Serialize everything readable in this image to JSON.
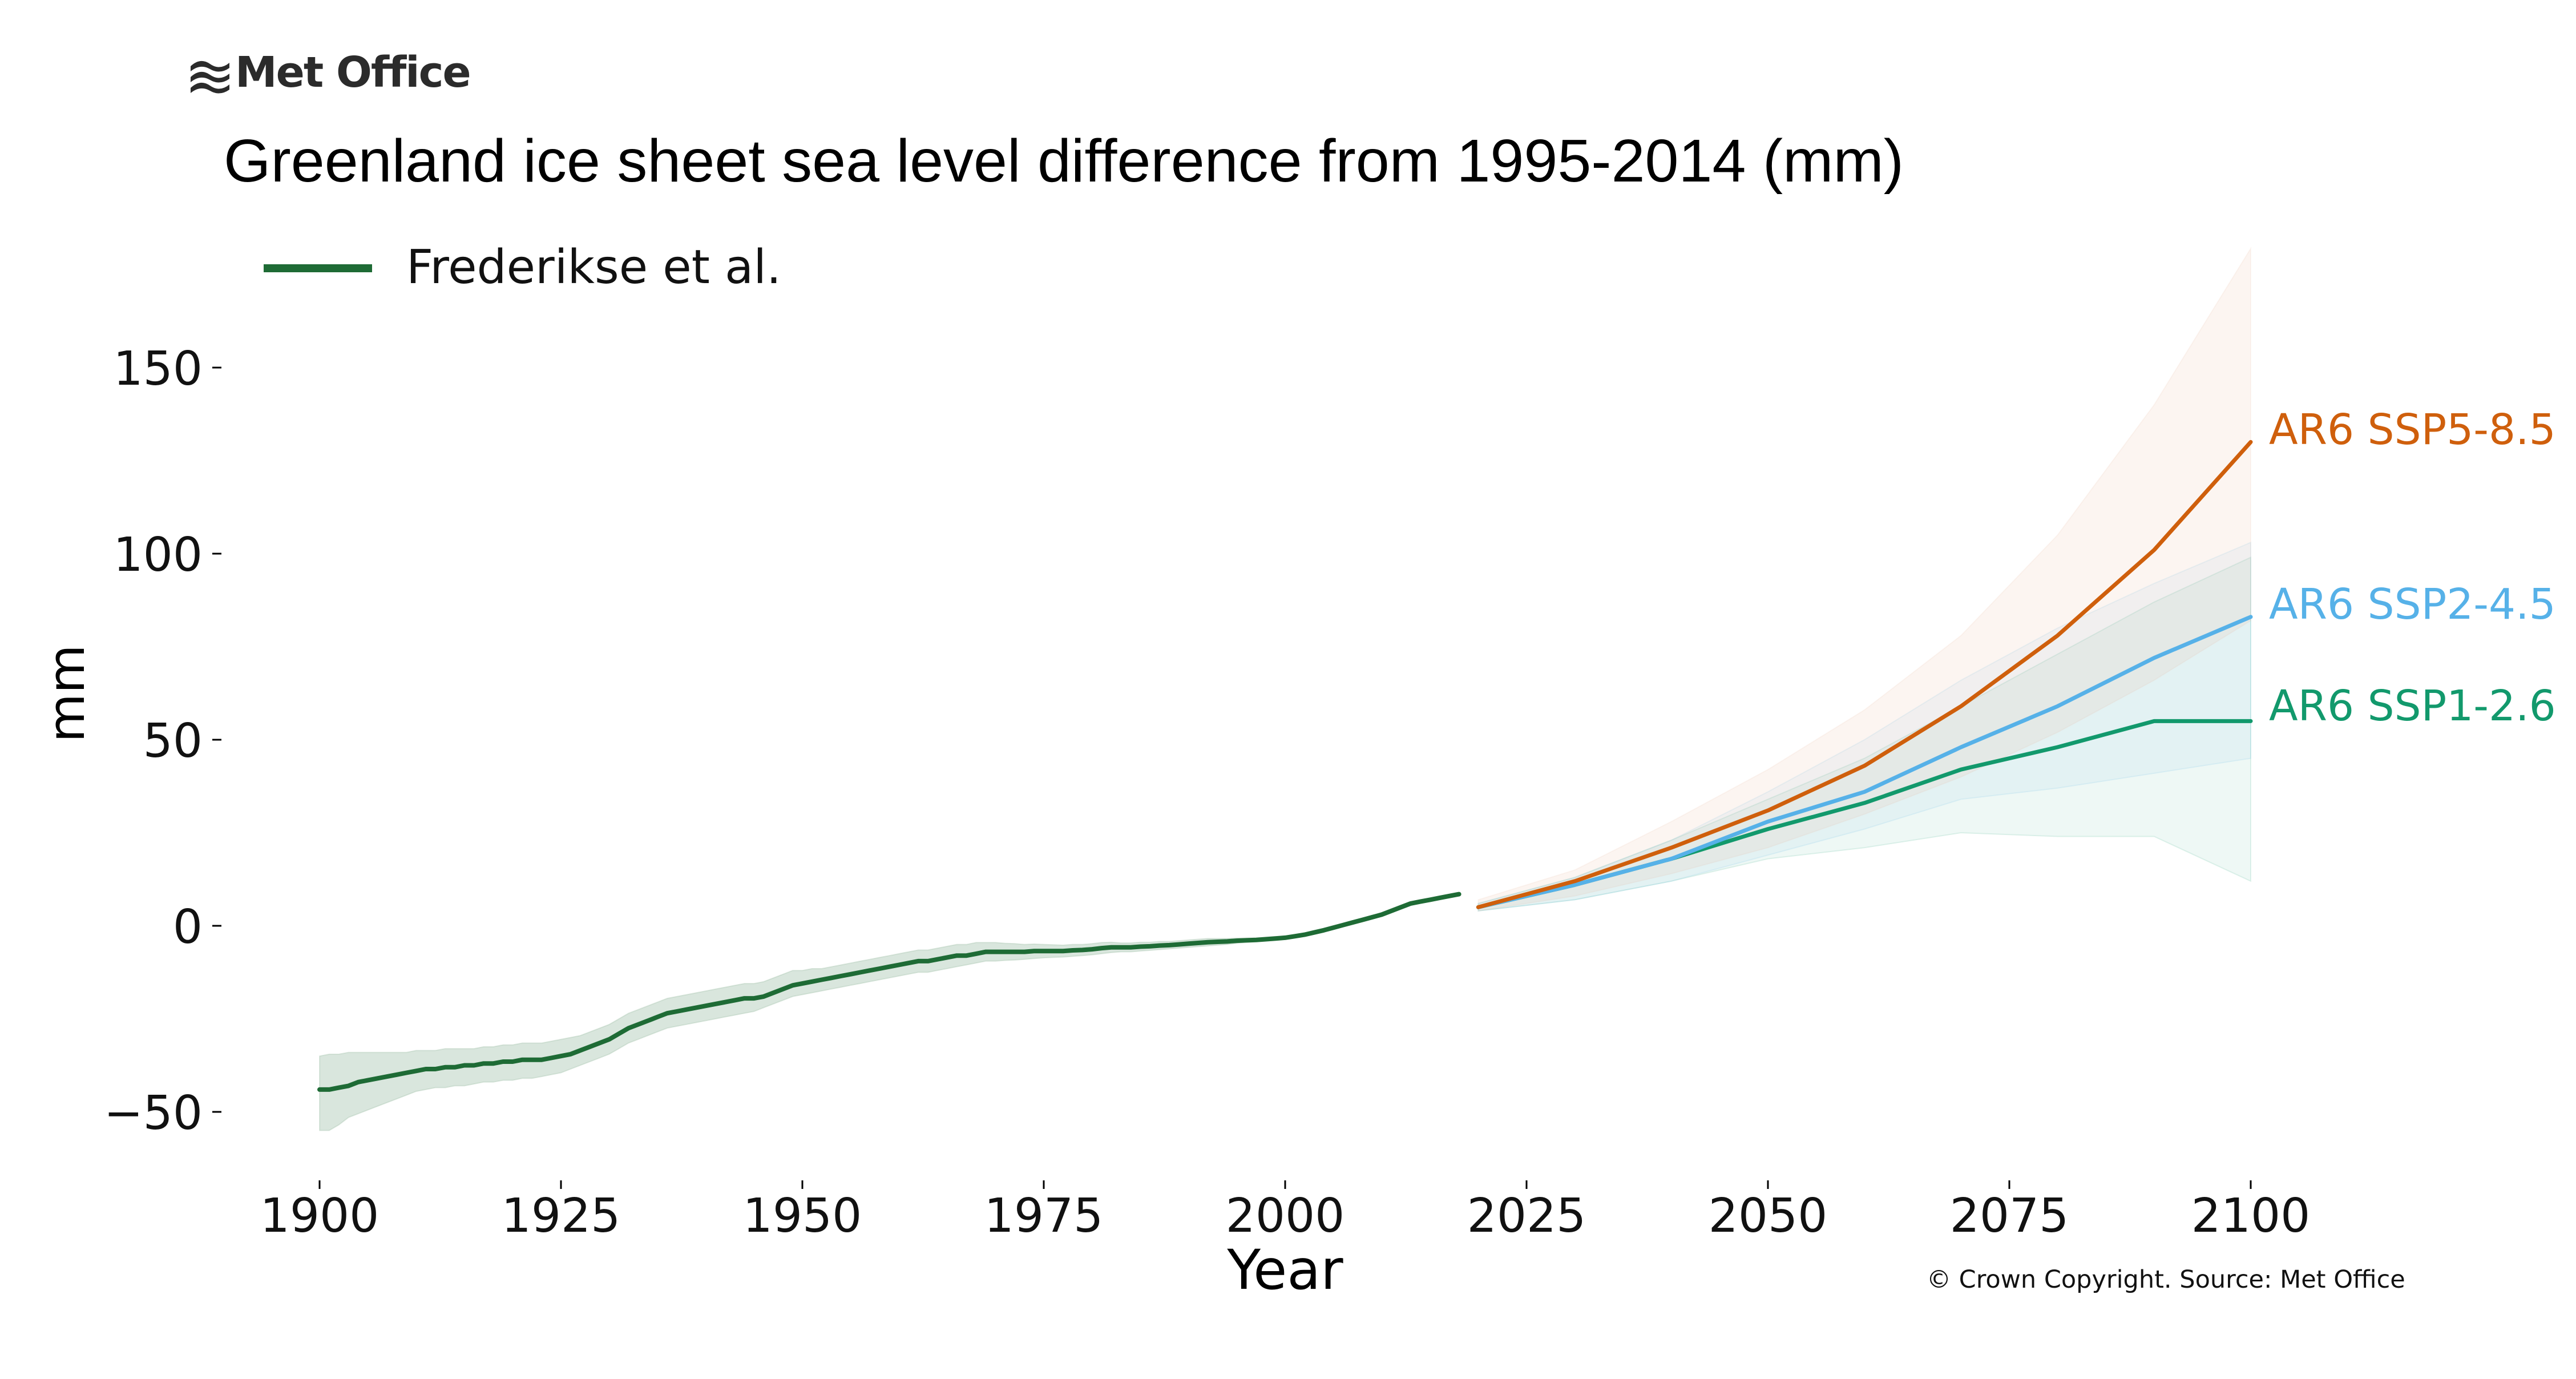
{
  "brand": {
    "name": "Met Office",
    "icon": "met-office-wave-logo-icon"
  },
  "chart_data": {
    "type": "line",
    "title": "Greenland ice sheet sea level difference from 1995-2014 (mm)",
    "xlabel": "Year",
    "ylabel": "mm",
    "xlim": [
      1893,
      2102
    ],
    "ylim": [
      -67,
      183
    ],
    "xticks": [
      1900,
      1925,
      1950,
      1975,
      2000,
      2025,
      2050,
      2075,
      2100
    ],
    "yticks": [
      -50,
      0,
      50,
      100,
      150
    ],
    "ytick_labels": [
      "−50",
      "0",
      "50",
      "100",
      "150"
    ],
    "grid": false,
    "legend": {
      "placement": "top-left",
      "entries": [
        "Frederikse et al."
      ]
    },
    "copyright": "© Crown Copyright. Source: Met Office",
    "series": [
      {
        "name": "Frederikse et al.",
        "color": "#1e6b35",
        "band_color": "#1e6b35",
        "x": [
          1900,
          1901,
          1902,
          1903,
          1904,
          1905,
          1906,
          1907,
          1908,
          1909,
          1910,
          1911,
          1912,
          1913,
          1914,
          1915,
          1916,
          1917,
          1918,
          1919,
          1920,
          1921,
          1922,
          1923,
          1924,
          1925,
          1926,
          1927,
          1928,
          1929,
          1930,
          1931,
          1932,
          1933,
          1934,
          1935,
          1936,
          1937,
          1938,
          1939,
          1940,
          1941,
          1942,
          1943,
          1944,
          1945,
          1946,
          1947,
          1948,
          1949,
          1950,
          1951,
          1952,
          1953,
          1954,
          1955,
          1956,
          1957,
          1958,
          1959,
          1960,
          1961,
          1962,
          1963,
          1964,
          1965,
          1966,
          1967,
          1968,
          1969,
          1970,
          1971,
          1972,
          1973,
          1974,
          1975,
          1976,
          1977,
          1978,
          1979,
          1980,
          1981,
          1982,
          1983,
          1984,
          1985,
          1986,
          1987,
          1988,
          1989,
          1990,
          1991,
          1992,
          1993,
          1994,
          1995,
          1996,
          1997,
          1998,
          1999,
          2000,
          2001,
          2002,
          2003,
          2004,
          2005,
          2006,
          2007,
          2008,
          2009,
          2010,
          2011,
          2012,
          2013,
          2014,
          2015,
          2016,
          2017,
          2018
        ],
        "values": [
          -44,
          -44,
          -43.5,
          -43,
          -42,
          -41.5,
          -41,
          -40.5,
          -40,
          -39.5,
          -39,
          -38.5,
          -38.5,
          -38,
          -38,
          -37.5,
          -37.5,
          -37,
          -37,
          -36.5,
          -36.5,
          -36,
          -36,
          -36,
          -35.5,
          -35,
          -34.5,
          -33.5,
          -32.5,
          -31.5,
          -30.5,
          -29,
          -27.5,
          -26.5,
          -25.5,
          -24.5,
          -23.5,
          -23,
          -22.5,
          -22,
          -21.5,
          -21,
          -20.5,
          -20,
          -19.5,
          -19.5,
          -19,
          -18,
          -17,
          -16,
          -15.5,
          -15,
          -14.5,
          -14,
          -13.5,
          -13,
          -12.5,
          -12,
          -11.5,
          -11,
          -10.5,
          -10,
          -9.5,
          -9.5,
          -9,
          -8.5,
          -8,
          -8,
          -7.5,
          -7,
          -7,
          -7,
          -7,
          -7,
          -6.8,
          -6.8,
          -6.8,
          -6.8,
          -6.6,
          -6.5,
          -6.3,
          -6,
          -5.8,
          -5.8,
          -5.8,
          -5.6,
          -5.5,
          -5.3,
          -5.2,
          -5,
          -4.8,
          -4.6,
          -4.4,
          -4.3,
          -4.2,
          -4,
          -3.9,
          -3.8,
          -3.6,
          -3.4,
          -3.2,
          -2.8,
          -2.4,
          -1.8,
          -1.2,
          -0.5,
          0.2,
          0.9,
          1.6,
          2.3,
          3,
          4,
          5,
          6,
          6.5,
          7,
          7.5,
          8,
          8.5
        ],
        "lower": [
          -55,
          -55,
          -53.5,
          -51.5,
          -50.5,
          -49.5,
          -48.5,
          -47.5,
          -46.5,
          -45.5,
          -44.5,
          -44,
          -43.5,
          -43.5,
          -43,
          -43,
          -42.5,
          -42,
          -42,
          -41.5,
          -41.5,
          -41,
          -41,
          -40.5,
          -40,
          -39.5,
          -38.5,
          -37.5,
          -36.5,
          -35.5,
          -34.5,
          -33,
          -31.5,
          -30.5,
          -29.5,
          -28.5,
          -27.5,
          -27,
          -26.5,
          -26,
          -25.5,
          -25,
          -24.5,
          -24,
          -23.5,
          -23,
          -22,
          -21,
          -20,
          -19,
          -18.5,
          -18,
          -17.5,
          -17,
          -16.5,
          -16,
          -15.5,
          -15,
          -14.5,
          -14,
          -13.5,
          -13,
          -12.5,
          -12.5,
          -12,
          -11.5,
          -11,
          -10.5,
          -10,
          -9.5,
          -9.5,
          -9.3,
          -9.2,
          -9,
          -8.8,
          -8.6,
          -8.5,
          -8.4,
          -8.2,
          -8,
          -7.8,
          -7.5,
          -7.2,
          -7,
          -7,
          -6.8,
          -6.6,
          -6.4,
          -6.2,
          -6,
          -5.8,
          -5.6,
          -5.4,
          -5.2,
          -5,
          -4.7,
          -4.5,
          -4.3,
          -4.1,
          -3.9,
          -3.6,
          -3.2,
          -2.8,
          -2.2,
          -1.6,
          -0.9,
          -0.2,
          0.5,
          1.2,
          1.9,
          2.6,
          3.6,
          4.6,
          5.6,
          6.1,
          6.6,
          7.1,
          7.6,
          8.1
        ],
        "upper": [
          -35,
          -34.5,
          -34.5,
          -34,
          -34,
          -34,
          -34,
          -34,
          -34,
          -34,
          -33.5,
          -33.5,
          -33.5,
          -33,
          -33,
          -33,
          -33,
          -32.5,
          -32.5,
          -32,
          -32,
          -31.5,
          -31.5,
          -31.5,
          -31,
          -30.5,
          -30,
          -29.5,
          -28.5,
          -27.5,
          -26.5,
          -25,
          -23.5,
          -22.5,
          -21.5,
          -20.5,
          -19.5,
          -19,
          -18.5,
          -18,
          -17.5,
          -17,
          -16.5,
          -16,
          -15.5,
          -15.5,
          -15,
          -14,
          -13,
          -12,
          -12,
          -11.5,
          -11.5,
          -11,
          -10.5,
          -10,
          -9.5,
          -9,
          -8.5,
          -8,
          -7.5,
          -7,
          -6.5,
          -6.5,
          -6,
          -5.5,
          -5,
          -5,
          -4.5,
          -4.5,
          -4.5,
          -4.7,
          -4.8,
          -5,
          -4.9,
          -5,
          -5.1,
          -5.2,
          -5,
          -5,
          -4.8,
          -4.5,
          -4.4,
          -4.6,
          -4.6,
          -4.4,
          -4.4,
          -4.2,
          -4.2,
          -4,
          -3.8,
          -3.6,
          -3.4,
          -3.4,
          -3.4,
          -3.3,
          -3.3,
          -3.3,
          -3.1,
          -2.9,
          -2.8,
          -2.4,
          -2,
          -1.4,
          -0.8,
          -0.1,
          0.6,
          1.3,
          2,
          2.7,
          3.4,
          4.4,
          5.4,
          6.4,
          6.9,
          7.4,
          7.9,
          8.4,
          8.9
        ]
      },
      {
        "name": "AR6 SSP1-2.6",
        "color": "#12996c",
        "band_color": "#12996c",
        "x": [
          2020,
          2030,
          2040,
          2050,
          2060,
          2070,
          2080,
          2090,
          2100
        ],
        "values": [
          5,
          11,
          18,
          26,
          33,
          42,
          48,
          55,
          55
        ],
        "lower": [
          4,
          7,
          12,
          18,
          21,
          25,
          24,
          24,
          12
        ],
        "upper": [
          6,
          13,
          23,
          34,
          45,
          59,
          73,
          87,
          99
        ]
      },
      {
        "name": "AR6 SSP2-4.5",
        "color": "#56b1e8",
        "band_color": "#56b1e8",
        "x": [
          2020,
          2030,
          2040,
          2050,
          2060,
          2070,
          2080,
          2090,
          2100
        ],
        "values": [
          5,
          11,
          18,
          28,
          36,
          48,
          59,
          72,
          83
        ],
        "lower": [
          4,
          7,
          12,
          19,
          26,
          34,
          37,
          41,
          45
        ],
        "upper": [
          6,
          13,
          23,
          36,
          50,
          66,
          80,
          92,
          103
        ]
      },
      {
        "name": "AR6 SSP5-8.5",
        "color": "#cf5f0c",
        "band_color": "#e7b99a",
        "x": [
          2020,
          2030,
          2040,
          2050,
          2060,
          2070,
          2080,
          2090,
          2100
        ],
        "values": [
          5,
          12,
          21,
          31,
          43,
          59,
          78,
          101,
          130
        ],
        "lower": [
          4,
          8,
          14,
          21,
          30,
          40,
          52,
          66,
          82
        ],
        "upper": [
          7,
          15,
          28,
          42,
          58,
          78,
          105,
          140,
          182
        ]
      }
    ],
    "end_labels": [
      "AR6 SSP5-8.5",
      "AR6 SSP2-4.5",
      "AR6 SSP1-2.6"
    ]
  }
}
